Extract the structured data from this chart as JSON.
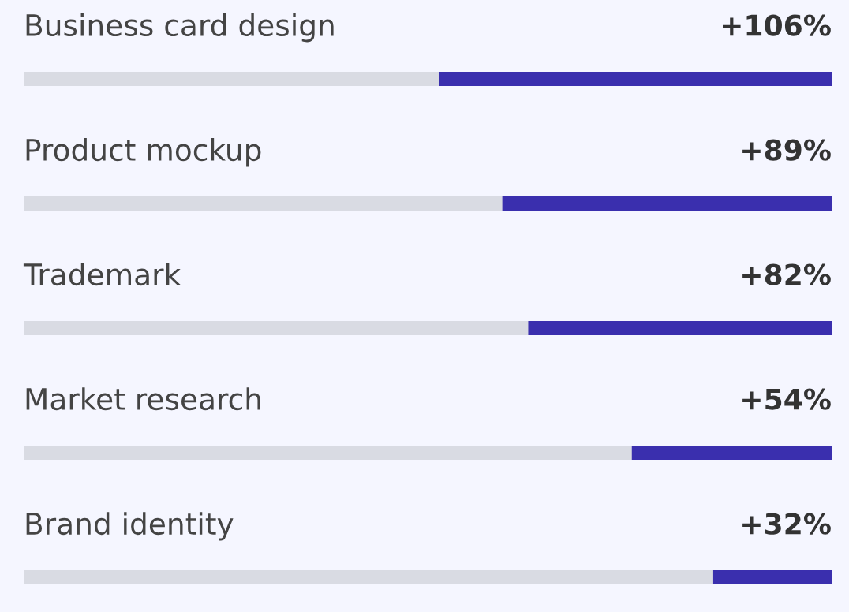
{
  "chart_data": {
    "type": "bar",
    "orientation": "horizontal",
    "categories": [
      "Business card design",
      "Product mockup",
      "Trademark",
      "Market research",
      "Brand identity"
    ],
    "values": [
      106,
      89,
      82,
      54,
      32
    ],
    "value_labels": [
      "+106%",
      "+89%",
      "+82%",
      "+54%",
      "+32%"
    ],
    "color": "#3a2fae"
  }
}
